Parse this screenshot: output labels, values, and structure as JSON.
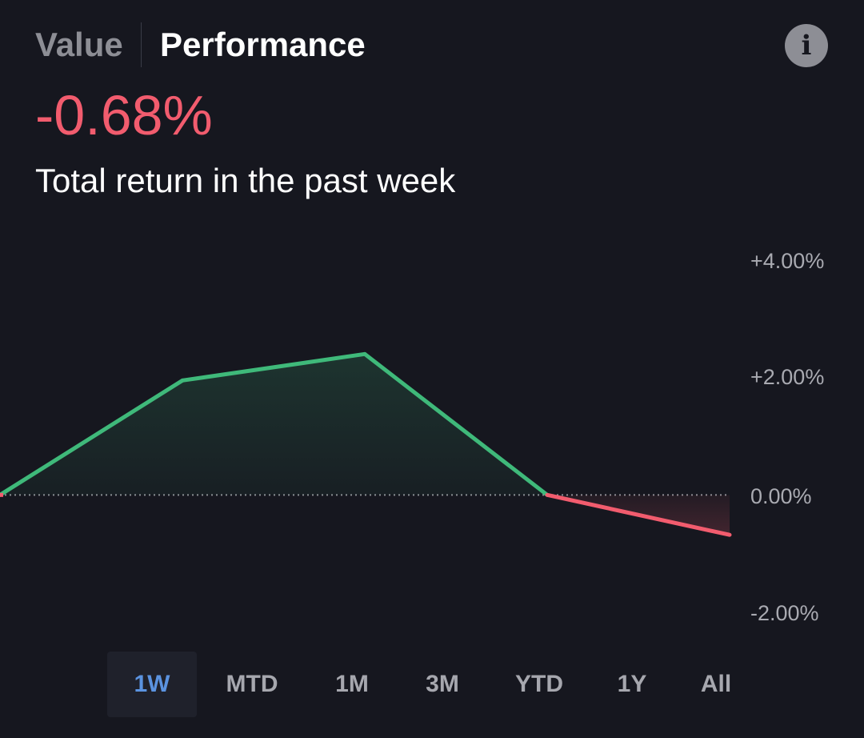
{
  "header": {
    "tabs": [
      {
        "label": "Value",
        "selected": false
      },
      {
        "label": "Performance",
        "selected": true
      }
    ],
    "info_icon": "info-icon",
    "info_glyph": "i"
  },
  "summary": {
    "return_value": "-0.68%",
    "caption": "Total return in the past week"
  },
  "colors": {
    "negative": "#f25c6e",
    "positive": "#3fb97a",
    "selected_range": "#5b93e0",
    "muted_text": "#8d8e95"
  },
  "chart_data": {
    "type": "line",
    "x": [
      0,
      1,
      2,
      3,
      4
    ],
    "values": [
      0.0,
      1.95,
      2.4,
      0.0,
      -0.68
    ],
    "y_ticks": [
      "+4.00%",
      "+2.00%",
      "0.00%",
      "-2.00%"
    ],
    "ylim": [
      -2,
      4
    ],
    "baseline": 0,
    "grid": false,
    "legend": "none"
  },
  "ranges": {
    "items": [
      "1W",
      "MTD",
      "1M",
      "3M",
      "YTD",
      "1Y",
      "All"
    ],
    "selected": "1W"
  }
}
